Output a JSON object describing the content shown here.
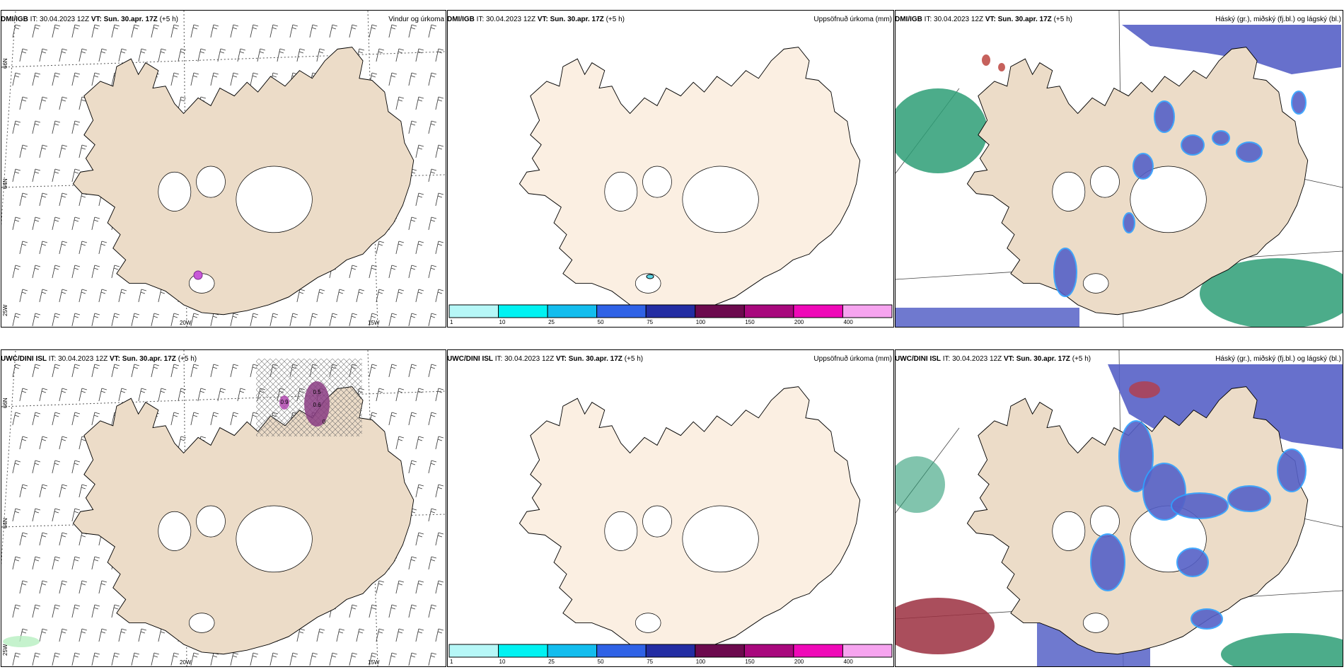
{
  "rows": [
    {
      "model": "DMI/IGB",
      "panels": [
        {
          "title": "Vindur og úrkoma",
          "type": "wind"
        },
        {
          "title": "Uppsöfnuð úrkoma (mm)",
          "type": "accum"
        },
        {
          "title": "Háský (gr.), miðský (fj.bl.) og lágský (bl.)",
          "type": "cloud"
        }
      ]
    },
    {
      "model": "UWC/DINI ISL",
      "panels": [
        {
          "title": "",
          "type": "wind"
        },
        {
          "title": "Uppsöfnuð úrkoma (mm)",
          "type": "accum"
        },
        {
          "title": "Háský (gr.), miðský (fj.bl.) og lágský (bl.)",
          "type": "cloud"
        }
      ]
    }
  ],
  "it_label": "IT:",
  "it_value": "30.04.2023 12Z",
  "vt_label": "VT:",
  "vt_value": "Sun. 30.apr. 17Z",
  "lead": "(+5 h)",
  "lat_labels": [
    "66N",
    "64N"
  ],
  "lon_labels": [
    "25W",
    "20W",
    "15W"
  ],
  "contour_labels": [
    "0.5",
    "0.6",
    "0.9",
    "0"
  ],
  "colorbar": {
    "ticks": [
      "1",
      "10",
      "25",
      "50",
      "75",
      "100",
      "150",
      "200",
      "400"
    ],
    "colors": [
      "#b6f7f7",
      "#00f2f2",
      "#13bdee",
      "#2f62e6",
      "#232da3",
      "#6c0a4e",
      "#a8087d",
      "#ef09b8",
      "#f6a4ef"
    ]
  },
  "colors": {
    "land": "#ecdcc8",
    "land_accum": "#fbefe2",
    "high_cloud": "#2d9d76",
    "mid_cloud": "#5661c7",
    "low_cloud": "#2fa0ff",
    "precip": "#8a3c83"
  }
}
